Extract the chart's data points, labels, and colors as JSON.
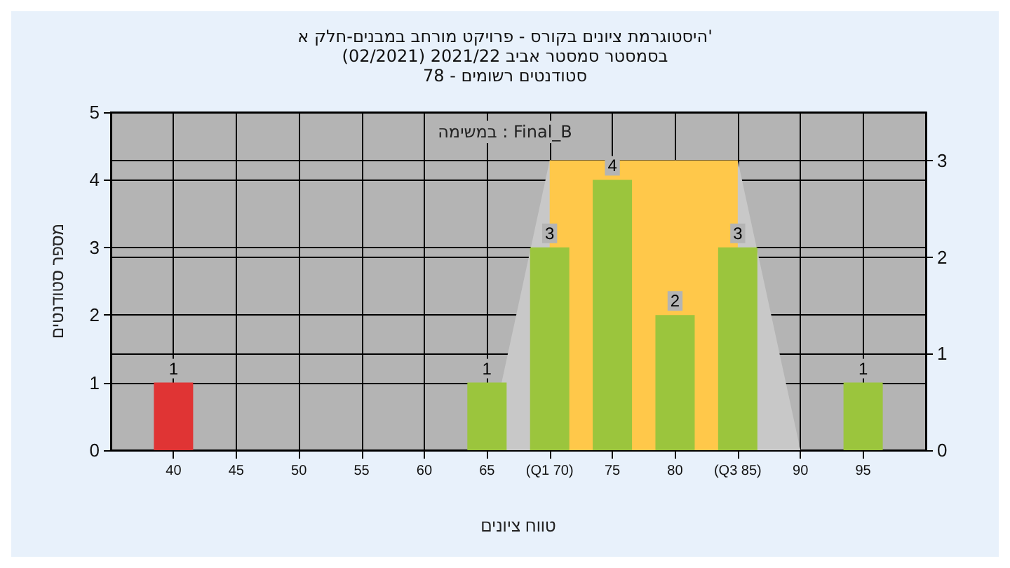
{
  "chart_data": {
    "type": "bar",
    "title": "היסטוגרמת ציונים בקורס - פרויקט מורחב במבנים-חלק א'\nבסמסטר סמסטר אביב 2021/22 (02/2021)\nסטודנטים רשומים - 78",
    "xlabel": "טווח ציונים",
    "ylabel": "מספר סטודנטים",
    "annotations": [
      "במשימה : Final_B"
    ],
    "x": [
      40,
      65,
      70,
      75,
      80,
      85,
      95
    ],
    "series": [
      {
        "type": "area",
        "axis": "y2",
        "color": "#c8c8c8",
        "x": [
          65,
          70,
          85,
          90
        ],
        "values": [
          0,
          3,
          3,
          0
        ]
      },
      {
        "type": "area",
        "axis": "y2",
        "color": "#ffc84a",
        "x": [
          70,
          85
        ],
        "values": [
          3,
          3
        ]
      },
      {
        "colors": [
          "#e03434",
          "#9bc53d",
          "#9bc53d",
          "#9bc53d",
          "#9bc53d",
          "#9bc53d",
          "#9bc53d"
        ],
        "values": [
          1,
          1,
          3,
          4,
          2,
          3,
          1
        ],
        "value_labels": [
          "1",
          "1",
          "3",
          "4",
          "2",
          "3",
          "1"
        ]
      }
    ],
    "xlim": [
      35,
      100
    ],
    "xticks": [
      40,
      45,
      50,
      55,
      60,
      65,
      {
        "value": 70,
        "label": "(Q1 70)"
      },
      75,
      80,
      {
        "value": 85,
        "label": "(Q3 85)"
      },
      90,
      95
    ],
    "ylim": [
      0,
      5
    ],
    "yticks": [
      0,
      1,
      2,
      3,
      4,
      5
    ],
    "y2lim": [
      0,
      3.5
    ],
    "y2ticks": [
      0,
      1,
      2,
      3
    ],
    "grid": true,
    "marker": "none"
  }
}
